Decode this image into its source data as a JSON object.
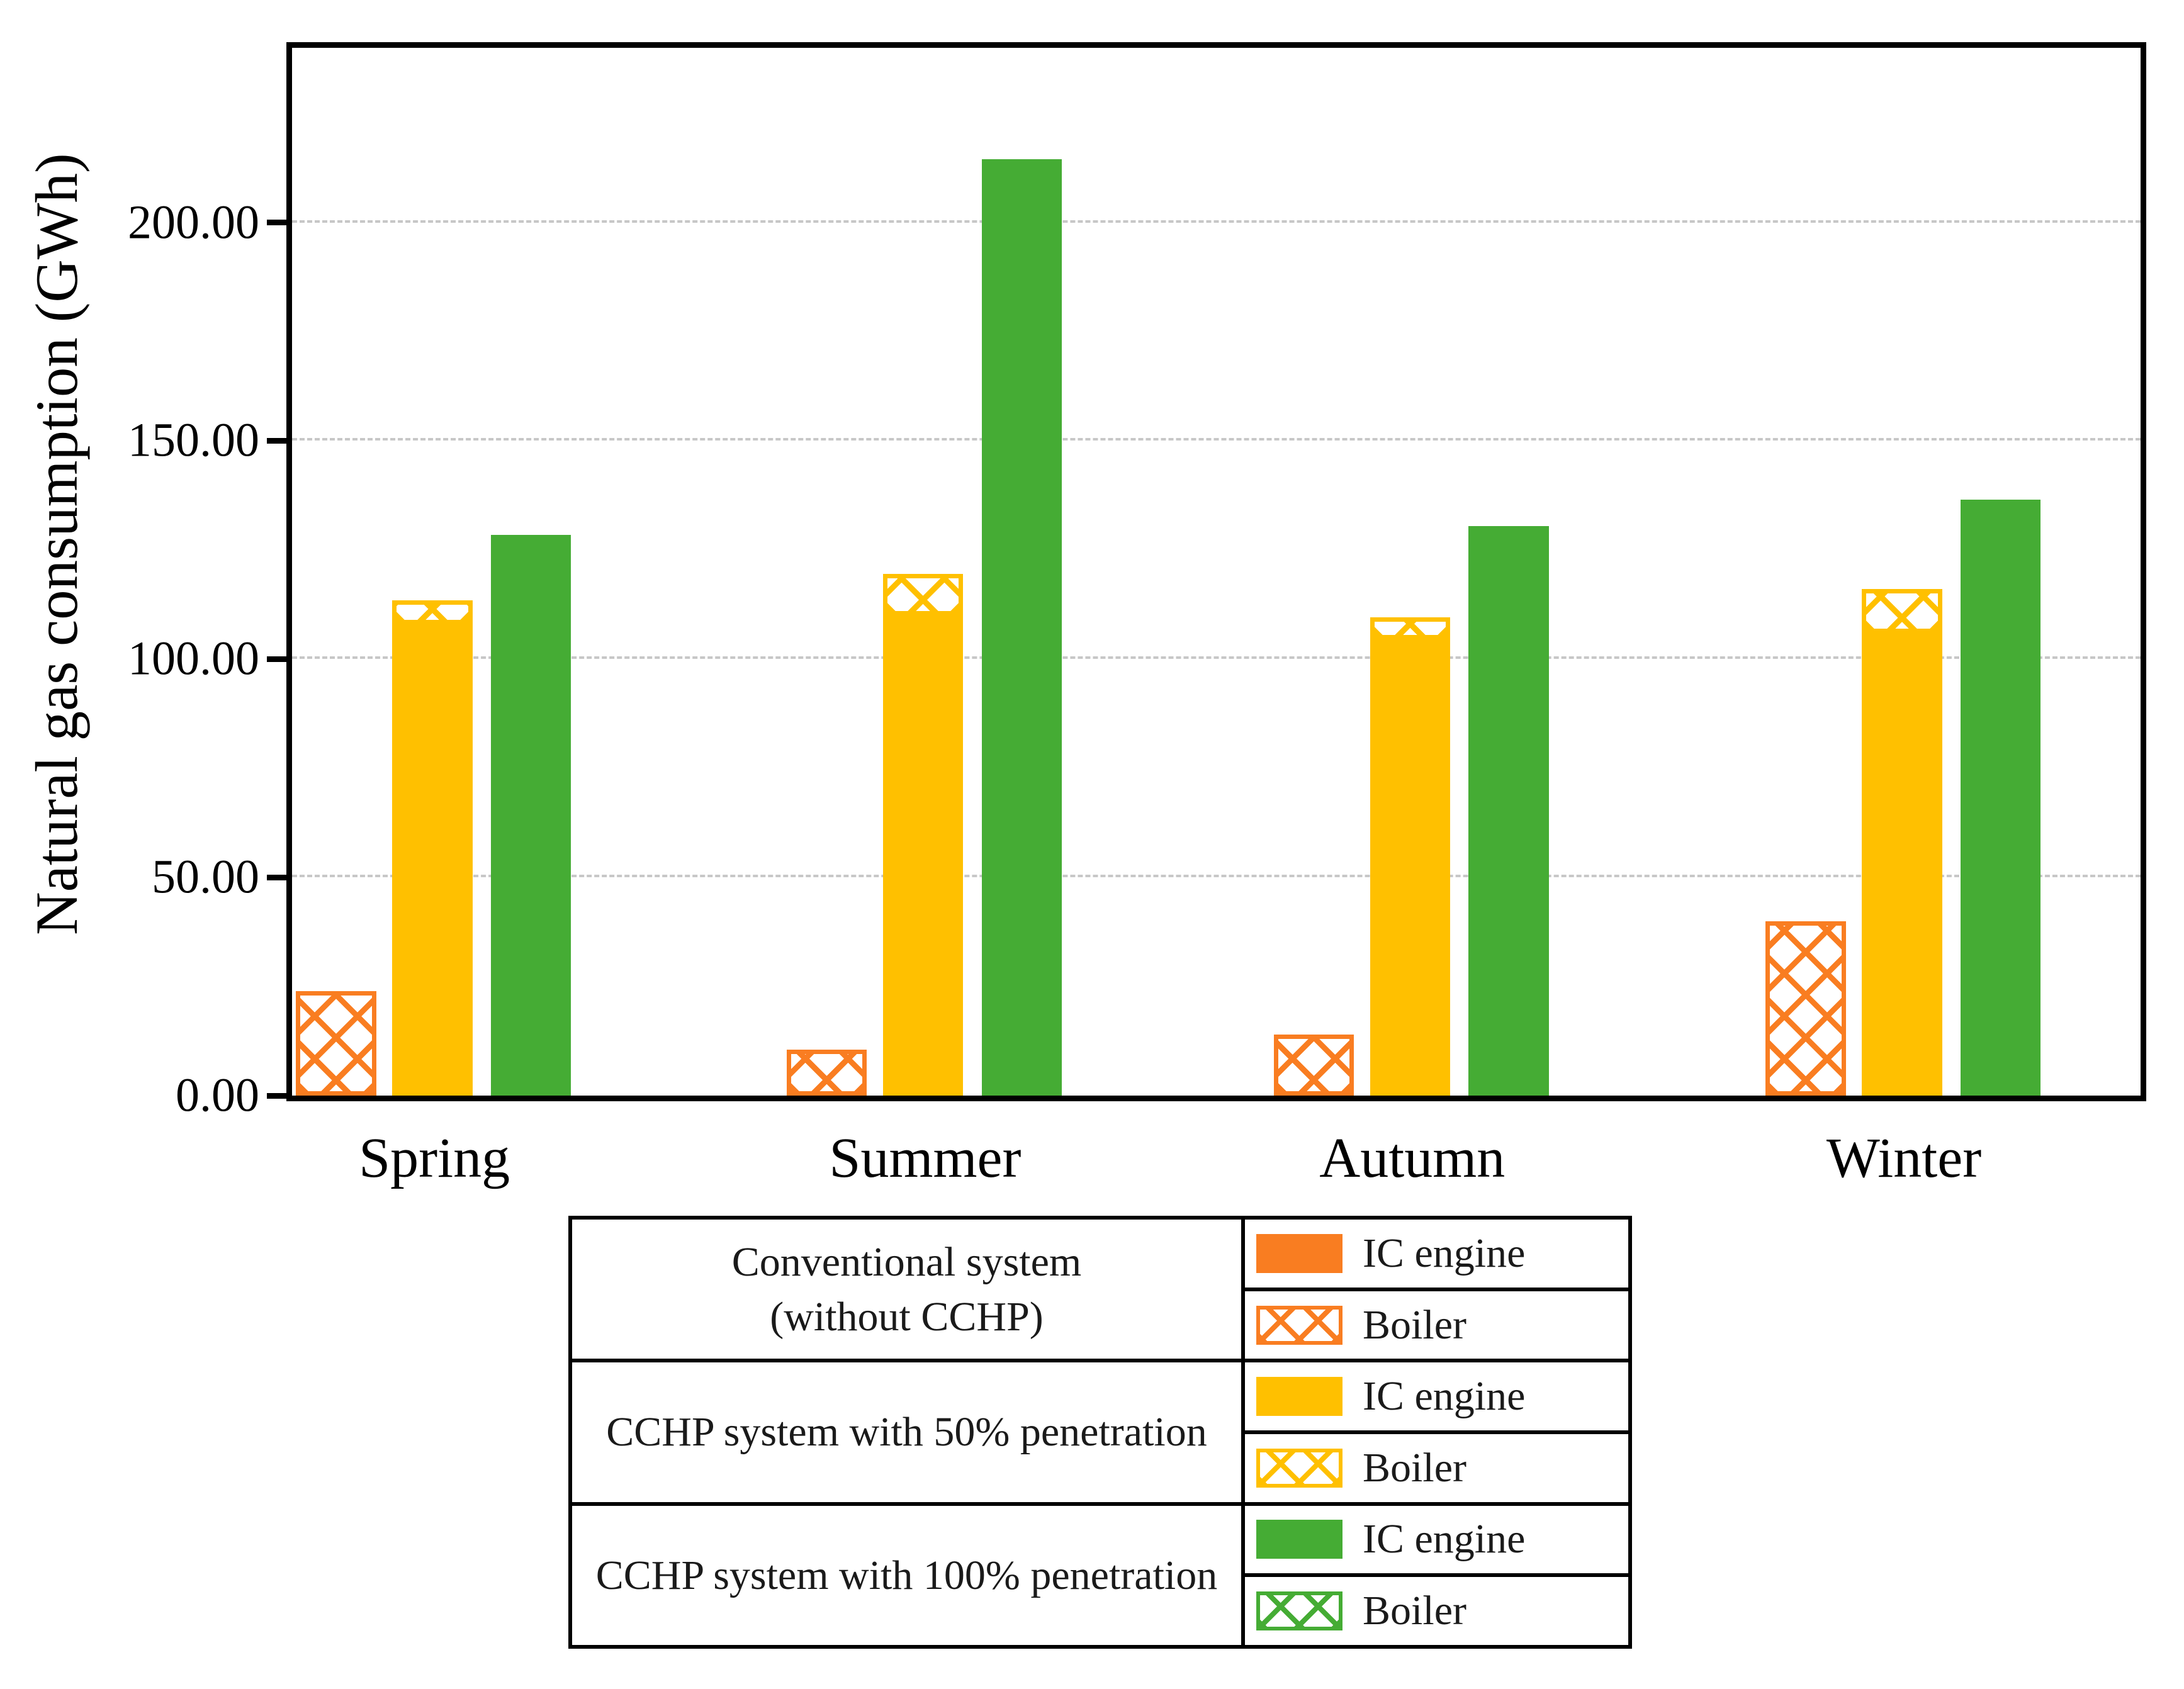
{
  "chart_data": {
    "type": "bar",
    "title": "",
    "xlabel": "",
    "ylabel": "Natural gas consumption (GWh)",
    "categories": [
      "Spring",
      "Summer",
      "Autumn",
      "Winter"
    ],
    "ylim": [
      0,
      240
    ],
    "y_ticks": [
      0,
      50,
      100,
      150,
      200
    ],
    "y_tick_labels": [
      "0.00",
      "50.00",
      "100.00",
      "150.00",
      "200.00"
    ],
    "grid": "horizontal-dashed-gray",
    "legend_position": "bottom-table",
    "bar_unit": "GWh",
    "series": [
      {
        "system": "Conventional system (without CCHP)",
        "component": "IC engine",
        "color": "#F97D21",
        "pattern": "solid",
        "values": [
          0,
          0,
          0,
          0
        ]
      },
      {
        "system": "Conventional system (without CCHP)",
        "component": "Boiler",
        "color": "#F97D21",
        "pattern": "crosshatch",
        "values": [
          24,
          10.5,
          14,
          40
        ]
      },
      {
        "system": "CCHP system with 50% penetration",
        "component": "IC engine",
        "color": "#FFC000",
        "pattern": "solid",
        "values": [
          108,
          110,
          104.5,
          106
        ]
      },
      {
        "system": "CCHP system with 50% penetration",
        "component": "Boiler",
        "color": "#FFC000",
        "pattern": "crosshatch",
        "values": [
          5.5,
          9.5,
          5,
          10
        ]
      },
      {
        "system": "CCHP system with 100% penetration",
        "component": "IC engine",
        "color": "#45AC34",
        "pattern": "solid",
        "values": [
          128.5,
          214.5,
          130.5,
          136.5
        ]
      },
      {
        "system": "CCHP system with 100% penetration",
        "component": "Boiler",
        "color": "#45AC34",
        "pattern": "crosshatch",
        "values": [
          0,
          0,
          0,
          0
        ]
      }
    ],
    "stacking": "Within each system bar the Boiler (crosshatch) segment is stacked on top of the IC engine (solid) segment",
    "legend": {
      "rows": [
        {
          "system_lines": [
            "Conventional system",
            "(without CCHP)"
          ],
          "color": "#F97D21",
          "entries": [
            {
              "label": "IC engine",
              "pattern": "solid"
            },
            {
              "label": "Boiler",
              "pattern": "crosshatch"
            }
          ]
        },
        {
          "system_lines": [
            "CCHP system with 50% penetration"
          ],
          "color": "#FFC000",
          "entries": [
            {
              "label": "IC engine",
              "pattern": "solid"
            },
            {
              "label": "Boiler",
              "pattern": "crosshatch"
            }
          ]
        },
        {
          "system_lines": [
            "CCHP system with 100% penetration"
          ],
          "color": "#45AC34",
          "entries": [
            {
              "label": "IC engine",
              "pattern": "solid"
            },
            {
              "label": "Boiler",
              "pattern": "crosshatch"
            }
          ]
        }
      ]
    }
  }
}
